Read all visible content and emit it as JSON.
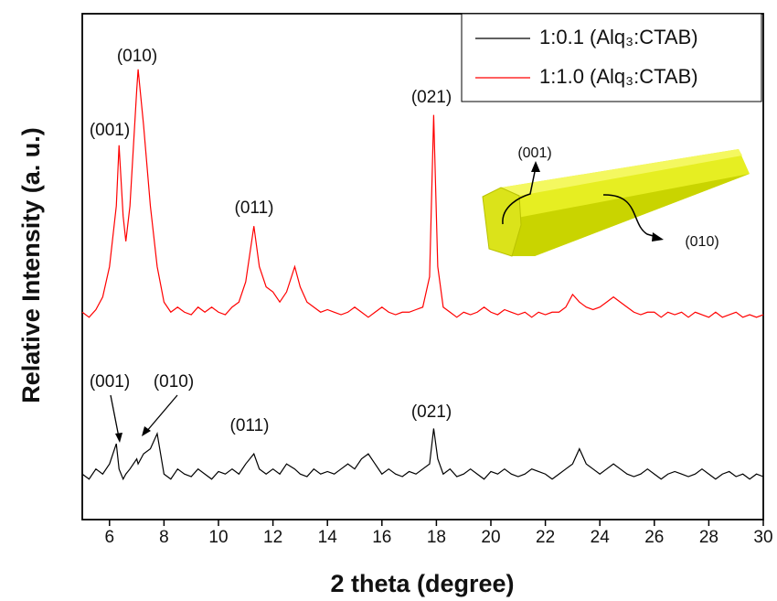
{
  "chart_data": {
    "type": "line",
    "x_label": "2 theta (degree)",
    "y_label": "Relative Intensity (a. u.)",
    "xlim": [
      5,
      30
    ],
    "xticks": [
      6,
      8,
      10,
      12,
      14,
      16,
      18,
      20,
      22,
      24,
      26,
      28,
      30
    ],
    "ylim": [
      0,
      100
    ],
    "legend": "upper right",
    "x": [
      5,
      5.25,
      5.5,
      5.75,
      6,
      6.25,
      6.35,
      6.5,
      6.6,
      6.75,
      7,
      7.05,
      7.25,
      7.5,
      7.75,
      8,
      8.25,
      8.5,
      8.75,
      9,
      9.25,
      9.5,
      9.75,
      10,
      10.25,
      10.5,
      10.75,
      11,
      11.3,
      11.5,
      11.75,
      12,
      12.25,
      12.5,
      12.8,
      13,
      13.25,
      13.5,
      13.75,
      14,
      14.25,
      14.5,
      14.75,
      15,
      15.25,
      15.5,
      15.75,
      16,
      16.25,
      16.5,
      16.75,
      17,
      17.25,
      17.5,
      17.75,
      17.9,
      18.05,
      18.25,
      18.5,
      18.75,
      19,
      19.25,
      19.5,
      19.75,
      20,
      20.25,
      20.5,
      20.75,
      21,
      21.25,
      21.5,
      21.75,
      22,
      22.25,
      22.5,
      22.75,
      23,
      23.25,
      23.5,
      23.75,
      24,
      24.25,
      24.5,
      24.75,
      25,
      25.25,
      25.5,
      25.75,
      26,
      26.25,
      26.5,
      26.75,
      27,
      27.25,
      27.5,
      27.75,
      28,
      28.25,
      28.5,
      28.75,
      29,
      29.25,
      29.5,
      29.75,
      30
    ],
    "series": [
      {
        "name": "1:0.1 (Alq₃:CTAB)",
        "color": "#000000",
        "values": [
          9,
          8,
          10,
          9,
          11,
          15,
          10,
          8,
          9,
          10,
          12,
          11,
          13,
          14,
          17,
          9,
          8,
          10,
          9,
          8.5,
          10,
          9,
          8,
          9.5,
          9,
          10,
          9,
          11,
          13,
          10,
          9,
          10,
          9,
          11,
          10,
          9,
          8.5,
          10,
          9,
          9.5,
          9,
          10,
          11,
          10,
          12,
          13,
          11,
          9,
          10,
          9,
          8.5,
          9.5,
          9,
          10,
          11,
          18,
          12,
          9,
          10,
          8.5,
          9,
          10,
          9,
          8,
          9.5,
          9,
          10,
          9,
          8.5,
          9,
          10,
          9.5,
          9,
          8,
          9,
          10,
          11,
          14,
          11,
          10,
          9,
          10,
          11,
          10,
          9,
          8.5,
          9,
          10,
          9,
          8,
          9,
          9.5,
          9,
          8.5,
          9,
          10,
          9,
          8,
          9,
          9.5,
          8.5,
          9,
          8,
          9,
          8.5
        ]
      },
      {
        "name": "1:1.0 (Alq₃:CTAB)",
        "color": "#ff0000",
        "values": [
          41,
          40,
          41.5,
          44,
          50,
          62,
          74,
          60,
          55,
          62,
          85,
          89,
          78,
          62,
          50,
          43,
          41,
          42,
          41,
          40.5,
          42,
          41,
          42,
          41,
          40.5,
          42,
          43,
          47,
          58,
          50,
          46,
          45,
          43,
          45,
          50,
          46,
          43,
          42,
          41,
          41.5,
          41,
          40.5,
          41,
          42,
          41,
          40,
          41,
          42,
          41,
          40.5,
          41,
          41,
          41.5,
          42,
          48,
          80,
          50,
          42,
          41,
          40,
          41,
          40.5,
          41,
          42,
          41,
          40.5,
          41.5,
          41,
          40.5,
          41,
          40,
          41,
          40.5,
          41,
          41,
          42,
          44.5,
          43,
          42,
          41.5,
          42,
          43,
          44,
          43,
          42,
          41,
          40.5,
          41,
          41,
          40,
          41,
          40.5,
          41,
          40,
          41,
          40.5,
          40,
          41,
          40,
          40.5,
          41,
          40,
          40.5,
          40,
          40.5
        ]
      }
    ],
    "annotations": [
      "(001)",
      "(010)",
      "(011)",
      "(021)",
      "(001)",
      "(010)",
      "(011)",
      "(021)",
      "(001)",
      "(010)"
    ]
  }
}
